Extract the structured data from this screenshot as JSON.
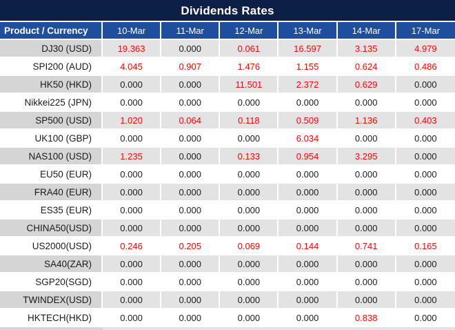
{
  "title": "Dividends Rates",
  "columns": {
    "product": "Product / Currency",
    "dates": [
      "10-Mar",
      "11-Mar",
      "12-Mar",
      "13-Mar",
      "14-Mar",
      "17-Mar"
    ]
  },
  "rows": [
    {
      "label": "DJ30 (USD)",
      "values": [
        "19.363",
        "0.000",
        "0.061",
        "16.597",
        "3.135",
        "4.979"
      ],
      "red": [
        true,
        false,
        true,
        true,
        true,
        true
      ]
    },
    {
      "label": "SPI200 (AUD)",
      "values": [
        "4.045",
        "0.907",
        "1.476",
        "1.155",
        "0.624",
        "0.486"
      ],
      "red": [
        true,
        true,
        true,
        true,
        true,
        true
      ]
    },
    {
      "label": "HK50 (HKD)",
      "values": [
        "0.000",
        "0.000",
        "11.501",
        "2.372",
        "0.629",
        "0.000"
      ],
      "red": [
        false,
        false,
        true,
        true,
        true,
        false
      ]
    },
    {
      "label": "Nikkei225 (JPN)",
      "values": [
        "0.000",
        "0.000",
        "0.000",
        "0.000",
        "0.000",
        "0.000"
      ],
      "red": [
        false,
        false,
        false,
        false,
        false,
        false
      ]
    },
    {
      "label": "SP500 (USD)",
      "values": [
        "1.020",
        "0.064",
        "0.118",
        "0.509",
        "1.136",
        "0.403"
      ],
      "red": [
        true,
        true,
        true,
        true,
        true,
        true
      ]
    },
    {
      "label": "UK100 (GBP)",
      "values": [
        "0.000",
        "0.000",
        "0.000",
        "6.034",
        "0.000",
        "0.000"
      ],
      "red": [
        false,
        false,
        false,
        true,
        false,
        false
      ]
    },
    {
      "label": "NAS100 (USD)",
      "values": [
        "1.235",
        "0.000",
        "0.133",
        "0.954",
        "3.295",
        "0.000"
      ],
      "red": [
        true,
        false,
        true,
        true,
        true,
        false
      ]
    },
    {
      "label": "EU50 (EUR)",
      "values": [
        "0.000",
        "0.000",
        "0.000",
        "0.000",
        "0.000",
        "0.000"
      ],
      "red": [
        false,
        false,
        false,
        false,
        false,
        false
      ]
    },
    {
      "label": "FRA40 (EUR)",
      "values": [
        "0.000",
        "0.000",
        "0.000",
        "0.000",
        "0.000",
        "0.000"
      ],
      "red": [
        false,
        false,
        false,
        false,
        false,
        false
      ]
    },
    {
      "label": "ES35 (EUR)",
      "values": [
        "0.000",
        "0.000",
        "0.000",
        "0.000",
        "0.000",
        "0.000"
      ],
      "red": [
        false,
        false,
        false,
        false,
        false,
        false
      ]
    },
    {
      "label": "CHINA50(USD)",
      "values": [
        "0.000",
        "0.000",
        "0.000",
        "0.000",
        "0.000",
        "0.000"
      ],
      "red": [
        false,
        false,
        false,
        false,
        false,
        false
      ]
    },
    {
      "label": "US2000(USD)",
      "values": [
        "0.246",
        "0.205",
        "0.069",
        "0.144",
        "0.741",
        "0.165"
      ],
      "red": [
        true,
        true,
        true,
        true,
        true,
        true
      ]
    },
    {
      "label": "SA40(ZAR)",
      "values": [
        "0.000",
        "0.000",
        "0.000",
        "0.000",
        "0.000",
        "0.000"
      ],
      "red": [
        false,
        false,
        false,
        false,
        false,
        false
      ]
    },
    {
      "label": "SGP20(SGD)",
      "values": [
        "0.000",
        "0.000",
        "0.000",
        "0.000",
        "0.000",
        "0.000"
      ],
      "red": [
        false,
        false,
        false,
        false,
        false,
        false
      ]
    },
    {
      "label": "TWINDEX(USD)",
      "values": [
        "0.000",
        "0.000",
        "0.000",
        "0.000",
        "0.000",
        "0.000"
      ],
      "red": [
        false,
        false,
        false,
        false,
        false,
        false
      ]
    },
    {
      "label": "HKTECH(HKD)",
      "values": [
        "0.000",
        "0.000",
        "0.000",
        "0.000",
        "0.838",
        "0.000"
      ],
      "red": [
        false,
        false,
        false,
        false,
        true,
        false
      ]
    }
  ],
  "colors": {
    "title_bg": "#0D1F45",
    "header_bg": "#1F4E9E",
    "stripe_label": "#D5D5D5",
    "stripe_value": "#E3E3E3",
    "value_red": "#FE0000",
    "text_dark": "#1A1A1A",
    "grid_white": "#FFFFFF"
  }
}
